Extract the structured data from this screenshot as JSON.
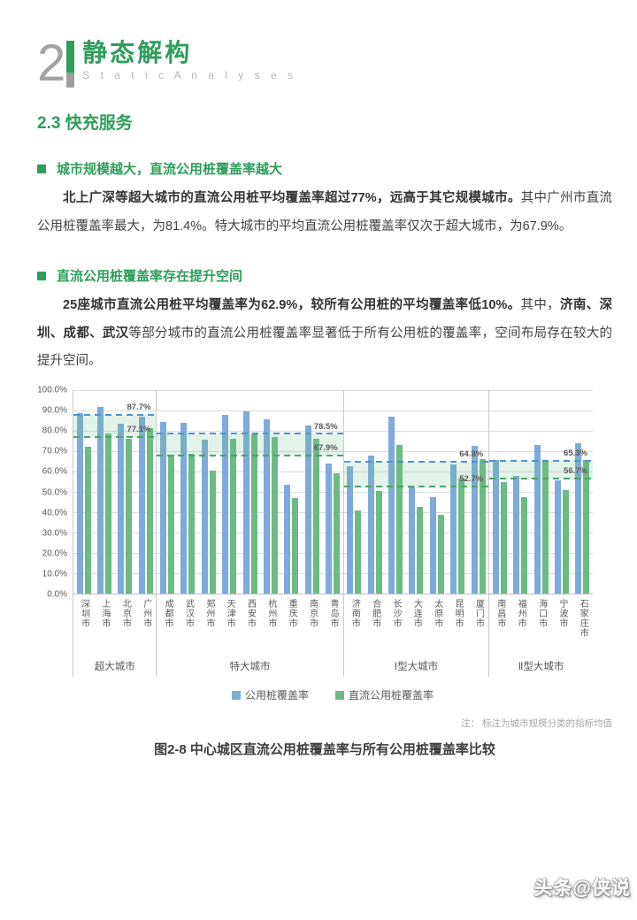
{
  "page": {
    "header": {
      "number": "2",
      "title": "静态解构",
      "subtitle": "S t a t i c   A n a l y s e s"
    },
    "section_title": "2.3 快充服务",
    "blocks": [
      {
        "heading": "城市规模越大，直流公用桩覆盖率越大",
        "paragraph": [
          {
            "text": "北上广深等超大城市的直流公用桩平均覆盖率超过77%，远高于其它规模城市。",
            "bold": true
          },
          {
            "text": "其中广州市直流公用桩覆盖率最大，为81.4%。特大城市的平均直流公用桩覆盖率仅次于超大城市，为67.9%。",
            "bold": false
          }
        ]
      },
      {
        "heading": "直流公用桩覆盖率存在提升空间",
        "paragraph": [
          {
            "text": "25座城市直流公用桩平均覆盖率为62.9%，较所有公用桩的平均覆盖率低10%。",
            "bold": true
          },
          {
            "text": "其中，",
            "bold": false
          },
          {
            "text": "济南、深圳、成都、武汉",
            "bold": true
          },
          {
            "text": "等部分城市的直流公用桩覆盖率显著低于所有公用桩的覆盖率，空间布局存在较大的提升空间。",
            "bold": false
          }
        ]
      }
    ],
    "figure": {
      "note": "注： 标注为城市规模分类的指标均值",
      "caption": "图2-8 中心城区直流公用桩覆盖率与所有公用桩覆盖率比较"
    },
    "watermark": "头条@侠说"
  },
  "colors": {
    "accent_green": "#2f9e5a",
    "bar_public_blue": "#7dabdb",
    "bar_dc_green": "#6cbb85",
    "avg_line_blue": "#4f93d0",
    "avg_line_green": "#4aa465"
  },
  "chart_data": {
    "type": "bar",
    "title": "",
    "xlabel": "",
    "ylabel": "",
    "ylim": [
      0,
      100
    ],
    "grid": true,
    "legend_position": "bottom",
    "yticks": [
      "100.0%",
      "90.0%",
      "80.0%",
      "70.0%",
      "60.0%",
      "50.0%",
      "40.0%",
      "30.0%",
      "20.0%",
      "10.0%",
      "0.0%"
    ],
    "series": [
      {
        "name": "公用桩覆盖率",
        "color": "#7dabdb"
      },
      {
        "name": "直流公用桩覆盖率",
        "color": "#6cbb85"
      }
    ],
    "groups": [
      {
        "label": "超大城市",
        "avg_public": 87.7,
        "avg_dc": 77.1,
        "cities": [
          {
            "name": "深圳市",
            "public": 88.8,
            "dc": 72.4
          },
          {
            "name": "上海市",
            "public": 91.9,
            "dc": 78.9
          },
          {
            "name": "北京市",
            "public": 83.3,
            "dc": 75.9
          },
          {
            "name": "广州市",
            "public": 86.8,
            "dc": 81.4
          }
        ]
      },
      {
        "label": "特大城市",
        "avg_public": 78.5,
        "avg_dc": 67.9,
        "cities": [
          {
            "name": "成都市",
            "public": 84.3,
            "dc": 68.5
          },
          {
            "name": "武汉市",
            "public": 84.0,
            "dc": 68.8
          },
          {
            "name": "郑州市",
            "public": 75.5,
            "dc": 60.5
          },
          {
            "name": "天津市",
            "public": 88.0,
            "dc": 76.0
          },
          {
            "name": "西安市",
            "public": 89.5,
            "dc": 78.5
          },
          {
            "name": "杭州市",
            "public": 85.5,
            "dc": 77.0
          },
          {
            "name": "重庆市",
            "public": 53.5,
            "dc": 46.8
          },
          {
            "name": "南京市",
            "public": 82.5,
            "dc": 76.2
          },
          {
            "name": "青岛市",
            "public": 63.8,
            "dc": 59.2
          }
        ]
      },
      {
        "label": "Ⅰ型大城市",
        "avg_public": 64.8,
        "avg_dc": 52.7,
        "cities": [
          {
            "name": "济南市",
            "public": 62.8,
            "dc": 41.0
          },
          {
            "name": "合肥市",
            "public": 67.9,
            "dc": 50.5
          },
          {
            "name": "长沙市",
            "public": 86.8,
            "dc": 73.0
          },
          {
            "name": "大连市",
            "public": 52.5,
            "dc": 42.8
          },
          {
            "name": "太原市",
            "public": 47.5,
            "dc": 38.8
          },
          {
            "name": "昆明市",
            "public": 63.5,
            "dc": 56.5
          },
          {
            "name": "厦门市",
            "public": 72.6,
            "dc": 66.3
          }
        ]
      },
      {
        "label": "Ⅱ型大城市",
        "avg_public": 65.3,
        "avg_dc": 56.7,
        "cities": [
          {
            "name": "南昌市",
            "public": 65.8,
            "dc": 54.7
          },
          {
            "name": "福州市",
            "public": 58.0,
            "dc": 47.5
          },
          {
            "name": "海口市",
            "public": 73.0,
            "dc": 64.8
          },
          {
            "name": "宁波市",
            "public": 55.7,
            "dc": 51.0
          },
          {
            "name": "石家庄市",
            "public": 74.0,
            "dc": 65.5
          }
        ]
      }
    ]
  }
}
